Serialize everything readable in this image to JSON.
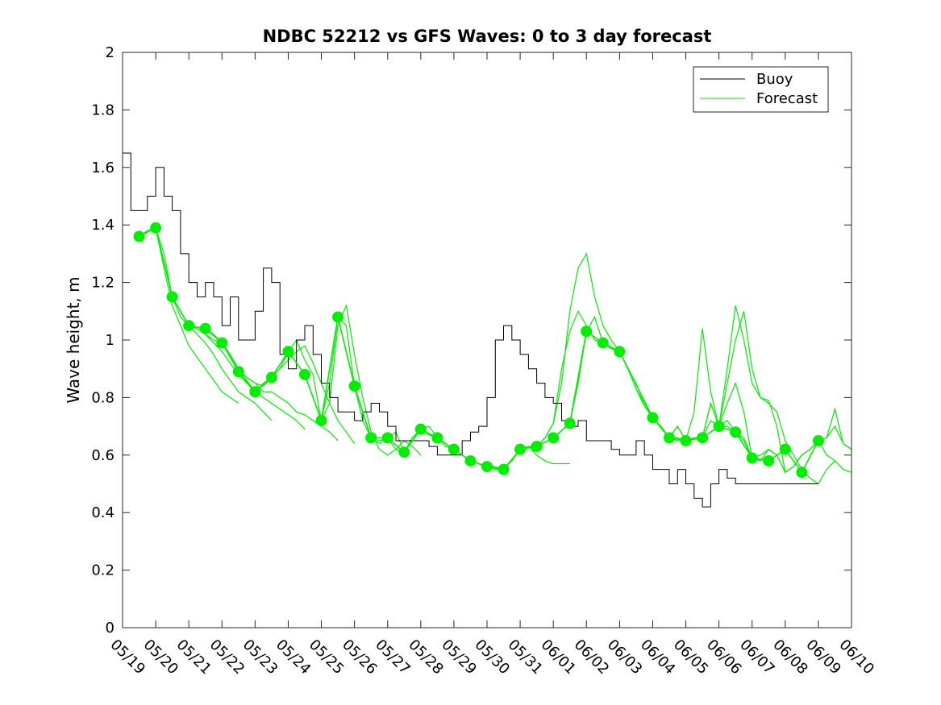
{
  "chart_data": {
    "type": "line",
    "title": "NDBC 52212 vs GFS Waves: 0 to 3 day forecast",
    "ylabel": "Wave height, m",
    "xlabel": "",
    "xlim": [
      0,
      22
    ],
    "ylim": [
      0,
      2
    ],
    "x_tick_labels": [
      "05/19",
      "05/20",
      "05/21",
      "05/22",
      "05/23",
      "05/24",
      "05/25",
      "05/26",
      "05/27",
      "05/28",
      "05/29",
      "05/30",
      "05/31",
      "06/01",
      "06/02",
      "06/03",
      "06/04",
      "06/05",
      "06/06",
      "06/07",
      "06/08",
      "06/09",
      "06/10"
    ],
    "y_ticks": [
      0,
      0.2,
      0.4,
      0.6,
      0.8,
      1,
      1.2,
      1.4,
      1.6,
      1.8,
      2
    ],
    "y_tick_labels": [
      "0",
      "0.2",
      "0.4",
      "0.6",
      "0.8",
      "1",
      "1.2",
      "1.4",
      "1.6",
      "1.8",
      "2"
    ],
    "grid": false,
    "legend_position": "top-right",
    "legend": [
      {
        "label": "Buoy",
        "color": "#000000"
      },
      {
        "label": "Forecast",
        "color": "#00ee00"
      }
    ],
    "buoy": {
      "name": "Buoy",
      "color": "#000000",
      "x": [
        0,
        0.25,
        0.5,
        0.75,
        1,
        1.25,
        1.5,
        1.75,
        2,
        2.25,
        2.5,
        2.75,
        3,
        3.25,
        3.5,
        3.75,
        4,
        4.25,
        4.5,
        4.75,
        5,
        5.25,
        5.5,
        5.75,
        6,
        6.25,
        6.5,
        6.75,
        7,
        7.25,
        7.5,
        7.75,
        8,
        8.25,
        8.5,
        8.75,
        9,
        9.25,
        9.5,
        9.75,
        10,
        10.25,
        10.5,
        10.75,
        11,
        11.25,
        11.5,
        11.75,
        12,
        12.25,
        12.5,
        12.75,
        13,
        13.25,
        13.5,
        13.75,
        14,
        14.25,
        14.5,
        14.75,
        15,
        15.25,
        15.5,
        15.75,
        16,
        16.25,
        16.5,
        16.75,
        17,
        17.25,
        17.5,
        17.75,
        18,
        18.25,
        18.5,
        18.75,
        19,
        19.25,
        19.5,
        19.75,
        20,
        20.25,
        20.5,
        20.75,
        21
      ],
      "y": [
        1.65,
        1.45,
        1.45,
        1.5,
        1.6,
        1.5,
        1.45,
        1.3,
        1.2,
        1.15,
        1.2,
        1.15,
        1.05,
        1.15,
        1.0,
        1.0,
        1.1,
        1.25,
        1.2,
        0.95,
        0.9,
        1.0,
        1.05,
        0.95,
        0.85,
        0.8,
        0.75,
        0.75,
        0.72,
        0.75,
        0.78,
        0.75,
        0.7,
        0.65,
        0.65,
        0.65,
        0.65,
        0.63,
        0.6,
        0.6,
        0.6,
        0.65,
        0.68,
        0.7,
        0.8,
        1.0,
        1.05,
        1.0,
        0.95,
        0.9,
        0.85,
        0.8,
        0.78,
        0.72,
        0.7,
        0.72,
        0.65,
        0.65,
        0.65,
        0.62,
        0.6,
        0.6,
        0.65,
        0.6,
        0.55,
        0.55,
        0.5,
        0.55,
        0.5,
        0.45,
        0.42,
        0.5,
        0.55,
        0.52,
        0.5,
        0.5,
        0.5,
        0.5,
        0.5,
        0.5,
        0.5,
        0.5,
        0.5,
        0.5,
        0.5
      ]
    },
    "forecast_runs": [
      {
        "name": "Forecast",
        "x": [
          0.5,
          0.75,
          1.0,
          1.25,
          1.5,
          1.75,
          2.0,
          2.25,
          2.5,
          2.75,
          3.0,
          3.25,
          3.5
        ],
        "y": [
          1.36,
          1.38,
          1.39,
          1.25,
          1.12,
          1.05,
          0.98,
          0.94,
          0.9,
          0.86,
          0.82,
          0.8,
          0.78
        ]
      },
      {
        "name": "Forecast",
        "x": [
          1.0,
          1.25,
          1.5,
          1.75,
          2.0,
          2.25,
          2.5,
          2.75,
          3.0,
          3.25,
          3.5,
          3.75,
          4.0,
          4.25,
          4.5
        ],
        "y": [
          1.39,
          1.3,
          1.15,
          1.08,
          1.05,
          1.02,
          0.99,
          0.95,
          0.9,
          0.86,
          0.82,
          0.8,
          0.78,
          0.75,
          0.72
        ]
      },
      {
        "name": "Forecast",
        "x": [
          1.5,
          1.75,
          2.0,
          2.25,
          2.5,
          2.75,
          3.0,
          3.25,
          3.5,
          3.75,
          4.0,
          4.25,
          4.5,
          4.75,
          5.0,
          5.25,
          5.5
        ],
        "y": [
          1.15,
          1.1,
          1.05,
          1.04,
          1.02,
          0.99,
          0.96,
          0.92,
          0.88,
          0.85,
          0.82,
          0.8,
          0.78,
          0.76,
          0.74,
          0.72,
          0.69
        ]
      },
      {
        "name": "Forecast",
        "x": [
          2.0,
          2.25,
          2.5,
          2.75,
          3.0,
          3.25,
          3.5,
          3.75,
          4.0,
          4.25,
          4.5,
          4.75,
          5.0,
          5.25,
          5.5,
          5.75,
          6.0,
          6.25,
          6.5
        ],
        "y": [
          1.05,
          1.04,
          1.02,
          1.0,
          0.99,
          0.95,
          0.9,
          0.87,
          0.85,
          0.82,
          0.82,
          0.8,
          0.78,
          0.75,
          0.74,
          0.72,
          0.7,
          0.68,
          0.65
        ]
      },
      {
        "name": "Forecast",
        "x": [
          2.5,
          2.75,
          3.0,
          3.25,
          3.5,
          3.75,
          4.0,
          4.25,
          4.5,
          4.75,
          5.0,
          5.25,
          5.5,
          5.75,
          6.0,
          6.25,
          6.5,
          6.75,
          7.0
        ],
        "y": [
          1.04,
          1.02,
          0.99,
          0.95,
          0.89,
          0.87,
          0.85,
          0.84,
          0.87,
          0.9,
          0.93,
          0.96,
          0.98,
          0.92,
          0.85,
          0.78,
          0.72,
          0.68,
          0.64
        ]
      },
      {
        "name": "Forecast",
        "x": [
          3.5,
          3.75,
          4.0,
          4.25,
          4.5,
          4.75,
          5.0,
          5.25,
          5.5,
          5.75,
          6.0,
          6.25,
          6.5,
          6.75,
          7.0,
          7.25,
          7.5,
          7.75,
          8.0,
          8.25,
          8.5,
          8.75,
          9.0
        ],
        "y": [
          0.89,
          0.86,
          0.82,
          0.85,
          0.87,
          0.9,
          0.96,
          1.0,
          0.93,
          0.88,
          0.72,
          0.78,
          1.05,
          1.12,
          0.95,
          0.8,
          0.68,
          0.62,
          0.6,
          0.62,
          0.65,
          0.63,
          0.6
        ]
      },
      {
        "name": "Forecast",
        "x": [
          5.5,
          5.75,
          6.0,
          6.25,
          6.5,
          6.75,
          7.0,
          7.25,
          7.5,
          7.75,
          8.0,
          8.25,
          8.5,
          8.75,
          9.0,
          9.25,
          9.5,
          9.75,
          10.0,
          10.25,
          10.5,
          10.75,
          11.0
        ],
        "y": [
          0.88,
          0.8,
          0.72,
          0.85,
          1.08,
          1.05,
          0.84,
          0.72,
          0.66,
          0.64,
          0.66,
          0.68,
          0.61,
          0.66,
          0.69,
          0.7,
          0.66,
          0.64,
          0.62,
          0.6,
          0.58,
          0.57,
          0.56
        ]
      },
      {
        "name": "Forecast",
        "x": [
          7.5,
          7.75,
          8.0,
          8.25,
          8.5,
          8.75,
          9.0,
          9.25,
          9.5,
          9.75,
          10.0,
          10.25,
          10.5,
          10.75,
          11.0,
          11.25,
          11.5,
          11.75,
          12.0,
          12.25,
          12.5,
          12.75,
          13.0,
          13.25,
          13.5
        ],
        "y": [
          0.66,
          0.65,
          0.66,
          0.62,
          0.61,
          0.66,
          0.69,
          0.67,
          0.66,
          0.64,
          0.62,
          0.6,
          0.58,
          0.57,
          0.56,
          0.56,
          0.55,
          0.58,
          0.62,
          0.63,
          0.6,
          0.58,
          0.57,
          0.57,
          0.57
        ]
      },
      {
        "name": "Forecast",
        "x": [
          9.5,
          9.75,
          10.0,
          10.25,
          10.5,
          10.75,
          11.0,
          11.25,
          11.5,
          11.75,
          12.0,
          12.25,
          12.5,
          12.75,
          13.0,
          13.25,
          13.5,
          13.75,
          14.0,
          14.25,
          14.5,
          14.75,
          15.0
        ],
        "y": [
          0.66,
          0.63,
          0.62,
          0.6,
          0.58,
          0.57,
          0.56,
          0.55,
          0.55,
          0.58,
          0.62,
          0.63,
          0.63,
          0.66,
          0.71,
          0.85,
          1.1,
          1.25,
          1.3,
          1.15,
          1.05,
          1.0,
          0.96
        ]
      },
      {
        "name": "Forecast",
        "x": [
          11.5,
          11.75,
          12.0,
          12.25,
          12.5,
          12.75,
          13.0,
          13.25,
          13.5,
          13.75,
          14.0,
          14.25,
          14.5,
          14.75,
          15.0,
          15.25,
          15.5,
          15.75,
          16.0,
          16.25,
          16.5,
          16.75,
          17.0,
          17.25,
          17.5
        ],
        "y": [
          0.55,
          0.58,
          0.62,
          0.63,
          0.63,
          0.66,
          0.71,
          0.9,
          1.03,
          1.1,
          1.05,
          1.0,
          0.99,
          0.97,
          0.96,
          0.9,
          0.85,
          0.78,
          0.73,
          0.7,
          0.66,
          0.66,
          0.65,
          0.66,
          0.66
        ]
      },
      {
        "name": "Forecast",
        "x": [
          13.5,
          13.75,
          14.0,
          14.25,
          14.5,
          14.75,
          15.0,
          15.25,
          15.5,
          15.75,
          16.0,
          16.25,
          16.5,
          16.75,
          17.0,
          17.25,
          17.5,
          17.75,
          18.0,
          18.25,
          18.5,
          18.75,
          19.0,
          19.25,
          19.5
        ],
        "y": [
          0.71,
          0.85,
          1.03,
          1.08,
          0.99,
          0.97,
          0.96,
          0.9,
          0.83,
          0.77,
          0.73,
          0.7,
          0.66,
          0.65,
          0.65,
          0.66,
          0.66,
          0.78,
          0.7,
          0.72,
          0.68,
          0.66,
          0.59,
          0.58,
          0.62
        ]
      },
      {
        "name": "Forecast",
        "x": [
          15.5,
          15.75,
          16.0,
          16.25,
          16.5,
          16.75,
          17.0,
          17.25,
          17.5,
          17.75,
          18.0,
          18.25,
          18.5,
          18.75,
          19.0,
          19.25,
          19.5,
          19.75,
          20.0,
          20.25,
          20.5,
          20.75,
          21.0,
          21.25,
          21.5
        ],
        "y": [
          0.83,
          0.78,
          0.73,
          0.7,
          0.66,
          0.7,
          0.65,
          0.66,
          0.66,
          0.72,
          0.7,
          0.7,
          0.68,
          0.65,
          0.59,
          0.58,
          0.62,
          0.6,
          0.54,
          0.56,
          0.6,
          0.62,
          0.65,
          0.6,
          0.58
        ]
      },
      {
        "name": "Forecast",
        "x": [
          16.5,
          16.75,
          17.0,
          17.25,
          17.5,
          17.75,
          18.0,
          18.25,
          18.5,
          18.75,
          19.0,
          19.25,
          19.5,
          19.75,
          20.0,
          20.25,
          20.5,
          20.75,
          21.0,
          21.25,
          21.5,
          21.75,
          22.0
        ],
        "y": [
          0.66,
          0.7,
          0.65,
          0.75,
          1.04,
          0.82,
          0.7,
          0.78,
          0.85,
          0.75,
          0.59,
          0.6,
          0.62,
          0.6,
          0.54,
          0.56,
          0.6,
          0.62,
          0.65,
          0.66,
          0.7,
          0.64,
          0.62
        ]
      },
      {
        "name": "Forecast",
        "x": [
          17.5,
          17.75,
          18.0,
          18.25,
          18.5,
          18.75,
          19.0,
          19.25,
          19.5,
          19.75,
          20.0,
          20.25,
          20.5,
          20.75,
          21.0,
          21.25,
          21.5,
          21.75,
          22.0
        ],
        "y": [
          0.66,
          0.78,
          0.7,
          0.85,
          1.0,
          1.1,
          0.9,
          0.8,
          0.79,
          0.7,
          0.54,
          0.56,
          0.6,
          0.62,
          0.65,
          0.66,
          0.76,
          0.64,
          0.62
        ]
      },
      {
        "name": "Forecast",
        "x": [
          18.0,
          18.25,
          18.5,
          18.75,
          19.0,
          19.25,
          19.5,
          19.75,
          20.0,
          20.25,
          20.5,
          20.75,
          21.0,
          21.25,
          21.5,
          21.75,
          22.0
        ],
        "y": [
          0.7,
          0.9,
          1.12,
          1.0,
          0.85,
          0.8,
          0.78,
          0.75,
          0.65,
          0.6,
          0.55,
          0.52,
          0.5,
          0.55,
          0.58,
          0.55,
          0.54
        ]
      }
    ],
    "forecast_points": {
      "name": "Forecast",
      "color": "#00ee00",
      "x": [
        0.5,
        1.0,
        1.5,
        2.0,
        2.5,
        3.0,
        3.5,
        4.0,
        4.5,
        5.0,
        5.5,
        6.0,
        6.5,
        7.0,
        7.5,
        8.0,
        8.5,
        9.0,
        9.5,
        10.0,
        10.5,
        11.0,
        11.5,
        12.0,
        12.5,
        13.0,
        13.5,
        14.0,
        14.5,
        15.0,
        16.0,
        16.5,
        17.0,
        17.5,
        18.0,
        18.5,
        19.0,
        19.5,
        20.0,
        20.5,
        21.0
      ],
      "y": [
        1.36,
        1.39,
        1.15,
        1.05,
        1.04,
        0.99,
        0.89,
        0.82,
        0.87,
        0.96,
        0.88,
        0.72,
        1.08,
        0.84,
        0.66,
        0.66,
        0.61,
        0.69,
        0.66,
        0.62,
        0.58,
        0.56,
        0.55,
        0.62,
        0.63,
        0.66,
        0.71,
        1.03,
        0.99,
        0.96,
        0.73,
        0.66,
        0.65,
        0.66,
        0.7,
        0.68,
        0.59,
        0.58,
        0.62,
        0.54,
        0.65
      ]
    }
  }
}
